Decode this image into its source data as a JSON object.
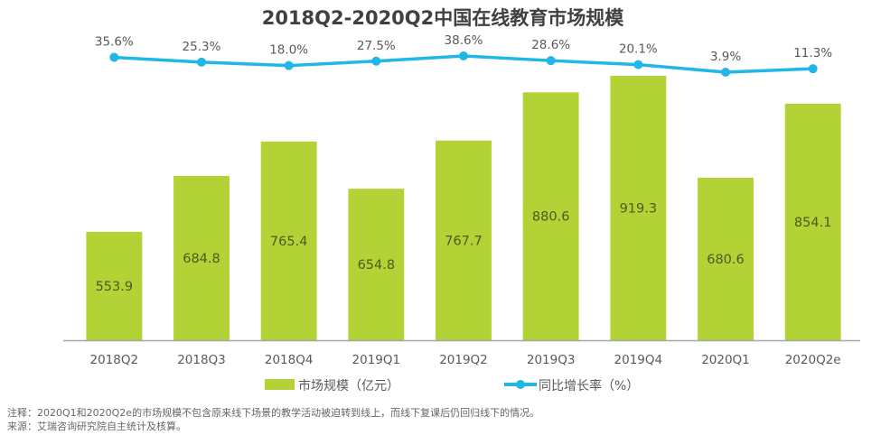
{
  "chart_data": {
    "type": "bar+line",
    "title": "2018Q2-2020Q2中国在线教育市场规模",
    "categories": [
      "2018Q2",
      "2018Q3",
      "2018Q4",
      "2019Q1",
      "2019Q2",
      "2019Q3",
      "2019Q4",
      "2020Q1",
      "2020Q2e"
    ],
    "series": [
      {
        "name": "市场规模（亿元）",
        "type": "bar",
        "color": "#b2d235",
        "values": [
          553.9,
          684.8,
          765.4,
          654.8,
          767.7,
          880.6,
          919.3,
          680.6,
          854.1
        ],
        "labels": [
          "553.9",
          "684.8",
          "765.4",
          "654.8",
          "767.7",
          "880.6",
          "919.3",
          "680.6",
          "854.1"
        ]
      },
      {
        "name": "同比增长率（%）",
        "type": "line",
        "color": "#1fb6e8",
        "values": [
          35.6,
          25.3,
          18.0,
          27.5,
          38.6,
          28.6,
          20.1,
          3.9,
          11.3
        ],
        "labels": [
          "35.6%",
          "25.3%",
          "18.0%",
          "27.5%",
          "38.6%",
          "28.6%",
          "20.1%",
          "3.9%",
          "11.3%"
        ]
      }
    ],
    "xlabel": "",
    "ylabel": "",
    "ylim": [
      300,
      1000
    ],
    "y2lim": [
      0,
      40
    ],
    "grid": false,
    "legend": "bottom"
  },
  "notes": {
    "note": "注释：2020Q1和2020Q2e的市场规模不包含原来线下场景的教学活动被迫转到线上，而线下复课后仍回归线下的情况。",
    "source": "来源：艾瑞咨询研究院自主统计及核算。"
  }
}
